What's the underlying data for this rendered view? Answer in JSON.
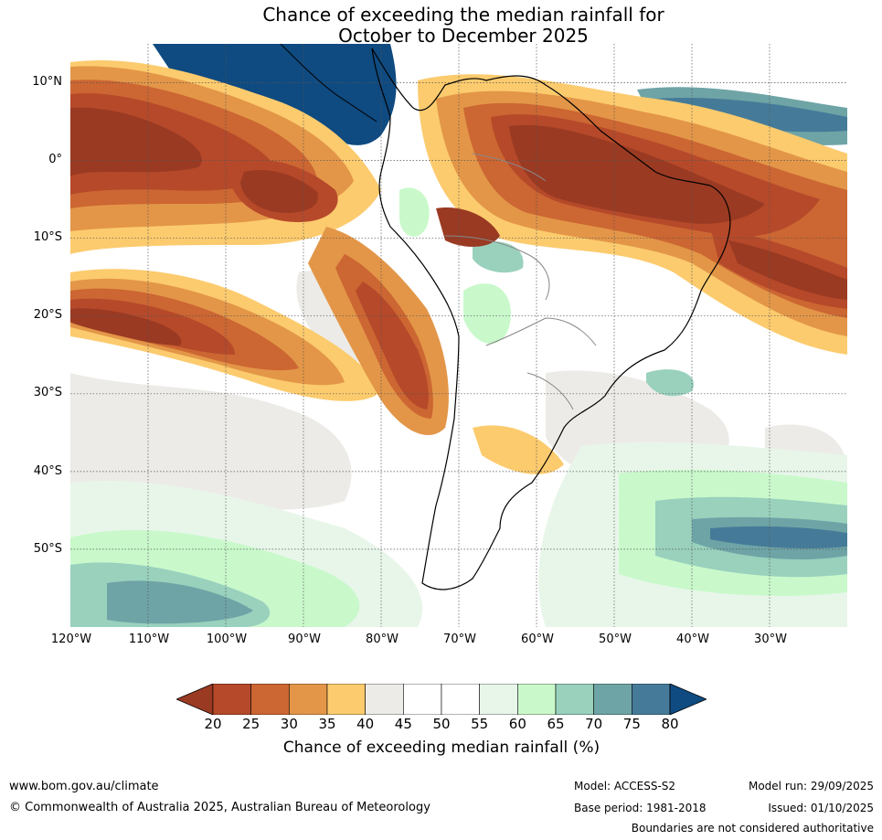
{
  "title": {
    "line1": "Chance of exceeding the median rainfall for",
    "line2": "October to December 2025"
  },
  "map": {
    "region": "South America and surrounding oceans",
    "lon_range": [
      -120,
      -20
    ],
    "lat_range": [
      -60,
      15
    ],
    "lat_labels": [
      "10°N",
      "0°",
      "10°S",
      "20°S",
      "30°S",
      "40°S",
      "50°S"
    ],
    "lon_labels": [
      "120°W",
      "110°W",
      "100°W",
      "90°W",
      "80°W",
      "70°W",
      "60°W",
      "50°W",
      "40°W",
      "30°W"
    ],
    "gridlines": "dotted"
  },
  "colorbar": {
    "ticks": [
      "20",
      "25",
      "30",
      "35",
      "40",
      "45",
      "50",
      "55",
      "60",
      "65",
      "70",
      "75",
      "80"
    ],
    "colors": [
      "#9a3a22",
      "#b5492a",
      "#cc6632",
      "#e39648",
      "#fccb6e",
      "#ecebe7",
      "#ffffff",
      "#ffffff",
      "#e8f6ea",
      "#c9f9cb",
      "#99d1bd",
      "#6ea4a6",
      "#457b98",
      "#0f4a80"
    ],
    "label": "Chance of exceeding median rainfall (%)"
  },
  "footer": {
    "website": "www.bom.gov.au/climate",
    "copyright": "© Commonwealth of Australia 2025, Australian Bureau of Meteorology",
    "model": "Model: ACCESS-S2",
    "base_period": "Base period: 1981-2018",
    "model_run": "Model run: 29/09/2025",
    "issued": "Issued: 01/10/2025",
    "disclaimer": "Boundaries are not considered authoritative"
  }
}
